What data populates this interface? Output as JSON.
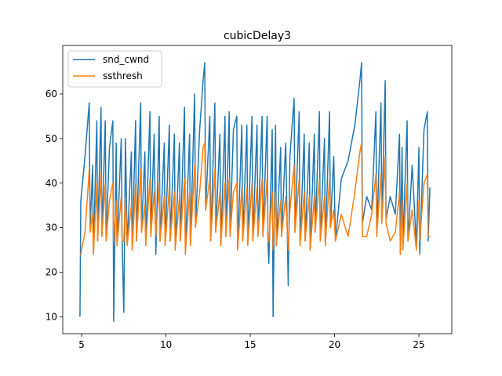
{
  "chart_data": {
    "type": "line",
    "title": "cubicDelay3",
    "x": [
      4.9,
      4.95,
      5.2,
      5.45,
      5.5,
      5.65,
      5.7,
      5.9,
      5.95,
      6.15,
      6.2,
      6.4,
      6.45,
      6.65,
      6.85,
      6.9,
      7.05,
      7.1,
      7.35,
      7.4,
      7.5,
      7.6,
      7.7,
      7.95,
      8.0,
      8.2,
      8.25,
      8.5,
      8.55,
      8.75,
      8.8,
      9.05,
      9.1,
      9.3,
      9.4,
      9.6,
      9.65,
      9.9,
      9.95,
      10.2,
      10.25,
      10.5,
      10.55,
      10.8,
      10.85,
      11.1,
      11.15,
      11.4,
      11.45,
      11.7,
      11.75,
      12.0,
      12.2,
      12.3,
      12.35,
      12.6,
      12.65,
      12.9,
      12.95,
      13.2,
      13.25,
      13.5,
      13.55,
      13.75,
      13.8,
      14.0,
      14.2,
      14.25,
      14.5,
      14.55,
      14.8,
      14.85,
      15.1,
      15.15,
      15.4,
      15.45,
      15.7,
      15.75,
      16.0,
      16.05,
      16.1,
      16.3,
      16.35,
      16.5,
      16.55,
      16.8,
      16.85,
      17.1,
      17.25,
      17.35,
      17.6,
      17.65,
      17.9,
      17.95,
      18.2,
      18.25,
      18.5,
      18.55,
      18.8,
      18.85,
      19.1,
      19.15,
      19.4,
      19.45,
      19.7,
      19.75,
      19.95,
      20.05,
      20.4,
      20.8,
      21.2,
      21.5,
      21.6,
      21.65,
      21.9,
      22.2,
      22.45,
      22.5,
      22.75,
      22.8,
      23.0,
      23.05,
      23.3,
      23.6,
      23.85,
      23.9,
      24.0,
      24.05,
      24.3,
      24.35,
      24.6,
      24.85,
      25.0,
      25.05,
      25.3,
      25.5,
      25.55,
      25.65
    ],
    "series": [
      {
        "name": "snd_cwnd",
        "color": "#1f77b4",
        "values": [
          10,
          36,
          46,
          58,
          29,
          44,
          24,
          54,
          27,
          57,
          28,
          54,
          27,
          48,
          54,
          9,
          49,
          26,
          50,
          27,
          11,
          50,
          26,
          47,
          25,
          54,
          27,
          58,
          29,
          47,
          26,
          56,
          28,
          51,
          24,
          55,
          27,
          49,
          26,
          53,
          27,
          51,
          25,
          49,
          27,
          57,
          24,
          51,
          26,
          60,
          30,
          52,
          63,
          67,
          34,
          55,
          27,
          58,
          29,
          51,
          26,
          55,
          28,
          56,
          28,
          52,
          55,
          25,
          53,
          27,
          53,
          26,
          55,
          27,
          53,
          28,
          55,
          28,
          55,
          27,
          22,
          52,
          10,
          53,
          26,
          48,
          28,
          49,
          17,
          46,
          59,
          29,
          56,
          26,
          51,
          27,
          49,
          25,
          51,
          29,
          56,
          27,
          50,
          26,
          56,
          30,
          46,
          27,
          41,
          45,
          53,
          63,
          67,
          31,
          37,
          34,
          56,
          28,
          58,
          31,
          63,
          32,
          37,
          33,
          51,
          24,
          48,
          26,
          54,
          27,
          44,
          26,
          48,
          24,
          52,
          56,
          27,
          39
        ]
      },
      {
        "name": "ssthresh",
        "color": "#ff7f0e",
        "values": [
          24,
          24,
          29,
          43,
          29,
          33,
          24,
          40,
          27,
          42,
          28,
          40,
          27,
          36,
          40,
          27,
          36,
          26,
          37,
          27,
          27,
          37,
          26,
          35,
          25,
          40,
          27,
          43,
          29,
          35,
          26,
          41,
          28,
          38,
          28,
          40,
          27,
          37,
          26,
          39,
          27,
          38,
          25,
          37,
          27,
          41,
          24,
          38,
          26,
          44,
          30,
          38,
          48,
          49,
          34,
          41,
          27,
          43,
          29,
          38,
          26,
          40,
          28,
          41,
          28,
          38,
          40,
          25,
          39,
          27,
          39,
          26,
          40,
          27,
          39,
          28,
          41,
          28,
          41,
          27,
          27,
          38,
          25,
          38,
          26,
          36,
          28,
          37,
          25,
          34,
          44,
          29,
          41,
          26,
          38,
          27,
          37,
          25,
          37,
          29,
          41,
          27,
          37,
          26,
          41,
          30,
          34,
          27,
          33,
          28,
          38,
          47,
          49,
          28,
          28,
          33,
          42,
          28,
          42,
          31,
          46,
          31,
          27,
          29,
          38,
          24,
          36,
          25,
          40,
          27,
          34,
          25,
          36,
          27,
          40,
          42,
          28,
          28
        ]
      }
    ],
    "xlim": [
      3.88,
      26.95
    ],
    "ylim": [
      6.2,
      70.9
    ],
    "xticks": [
      5,
      10,
      15,
      20,
      25
    ],
    "yticks": [
      10,
      20,
      30,
      40,
      50,
      60
    ],
    "legend": "upper left"
  }
}
